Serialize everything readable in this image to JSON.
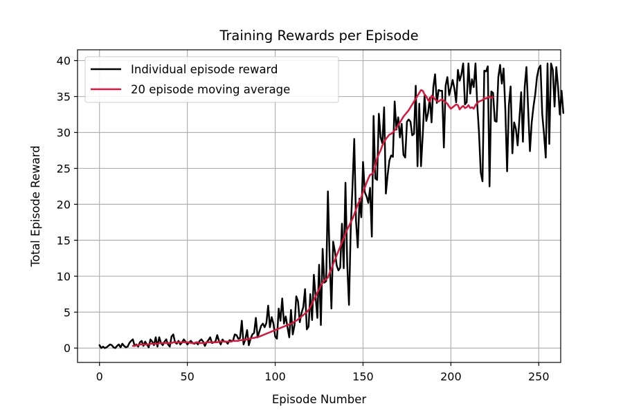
{
  "chart_data": {
    "type": "line",
    "title": "Training Rewards per Episode",
    "xlabel": "Episode Number",
    "ylabel": "Total Episode Reward",
    "xlim": [
      -12.5,
      262.5
    ],
    "ylim": [
      -2,
      41.5
    ],
    "xticks": [
      0,
      50,
      100,
      150,
      200,
      250
    ],
    "yticks": [
      0,
      5,
      10,
      15,
      20,
      25,
      30,
      35,
      40
    ],
    "grid": true,
    "legend_position": "upper-left",
    "series": [
      {
        "name": "Individual episode reward",
        "color": "#000000",
        "x_start": 0,
        "y": [
          0.4,
          0,
          0.2,
          0,
          0.1,
          0.3,
          0.5,
          0.4,
          0.1,
          0,
          0.3,
          0.5,
          0.1,
          0.6,
          0.3,
          0.1,
          0.2,
          0.7,
          1.0,
          1.2,
          0.3,
          0.5,
          0.2,
          0.8,
          1.0,
          0.3,
          0.9,
          0.5,
          0.1,
          1.2,
          0.9,
          0.4,
          1.5,
          0.2,
          1.5,
          0.7,
          0.4,
          0.9,
          1.2,
          0.5,
          0.2,
          1.6,
          1.9,
          0.8,
          0.6,
          1.0,
          0.5,
          0.8,
          1.2,
          0.9,
          0.5,
          0.8,
          1.0,
          0.7,
          0.6,
          0.8,
          0.5,
          1.0,
          1.2,
          0.9,
          0.3,
          0.8,
          1.1,
          1.5,
          0.7,
          0.8,
          0.9,
          1.8,
          1.0,
          0.5,
          1.2,
          0.9,
          0.9,
          0.6,
          1.1,
          1.0,
          1.0,
          1.9,
          1.8,
          1.3,
          1.4,
          3.8,
          0.5,
          1.2,
          2.5,
          0.4,
          1.3,
          1.9,
          2.1,
          4.2,
          1.5,
          2.3,
          3.1,
          3.4,
          2.9,
          3.5,
          5.9,
          2.9,
          4.3,
          3.4,
          1.6,
          1.3,
          5.5,
          3.8,
          6.9,
          3.4,
          4.4,
          2.9,
          1.5,
          5.3,
          1.9,
          3.2,
          7.2,
          6.5,
          3.6,
          4.9,
          5.7,
          8.2,
          2.6,
          3.0,
          7.5,
          3.9,
          10.2,
          7.2,
          4.2,
          11.6,
          3.2,
          13.8,
          9.1,
          9.3,
          21.8,
          12.4,
          5.5,
          14.8,
          13.4,
          11.5,
          10.8,
          11.2,
          17.3,
          11.1,
          23.0,
          11.7,
          6.0,
          16.6,
          22.5,
          29.1,
          17.7,
          14.0,
          20.8,
          18.2,
          25.9,
          21.7,
          21.1,
          20.2,
          22.3,
          15.5,
          32.3,
          23.6,
          23.4,
          32.6,
          29.3,
          28.5,
          33.5,
          21.5,
          24.1,
          26.1,
          26.8,
          26.6,
          34.3,
          30.4,
          32.1,
          29.3,
          31.2,
          26.9,
          26.5,
          31.5,
          31.8,
          31.5,
          29.6,
          29.8,
          36.5,
          25.3,
          34.0,
          25.3,
          29.7,
          35.1,
          31.6,
          32.7,
          34.8,
          31.4,
          36.3,
          38.1,
          34.1,
          35.9,
          35.8,
          35.8,
          27.9,
          36.5,
          37.7,
          35.2,
          36.2,
          37.3,
          36.1,
          34.2,
          38.7,
          37.2,
          38.1,
          39.6,
          33.9,
          34.2,
          39.6,
          35.4,
          37.4,
          36.3,
          39.6,
          33.9,
          30.0,
          24.4,
          23.2,
          38.6,
          38.5,
          39.2,
          22.5,
          35.7,
          35.5,
          31.6,
          31.5,
          37.7,
          39.4,
          36.8,
          38.9,
          33.1,
          24.6,
          33.8,
          36.4,
          27.1,
          31.4,
          30.5,
          28.2,
          31.9,
          35.6,
          28.7,
          36.3,
          39.1,
          33.1,
          27.4,
          31.4,
          33.6,
          35.3,
          37.7,
          38.9,
          39.3,
          32.5,
          29.8,
          26.5,
          39.6,
          28.4,
          39.6,
          38.7,
          33.6,
          39.1,
          36.3,
          32.5,
          35.8,
          32.7
        ]
      },
      {
        "name": "20 episode moving average",
        "color": "#dc143c",
        "x_start": 19,
        "y": [
          0.3,
          0.3,
          0.4,
          0.4,
          0.5,
          0.5,
          0.5,
          0.5,
          0.5,
          0.5,
          0.6,
          0.6,
          0.6,
          0.6,
          0.6,
          0.7,
          0.7,
          0.7,
          0.7,
          0.7,
          0.7,
          0.7,
          0.7,
          0.8,
          0.8,
          0.8,
          0.8,
          0.8,
          0.8,
          0.8,
          0.8,
          0.8,
          0.8,
          0.7,
          0.7,
          0.7,
          0.8,
          0.8,
          0.7,
          0.7,
          0.7,
          0.7,
          0.8,
          0.8,
          0.8,
          0.8,
          0.8,
          0.8,
          0.8,
          0.9,
          0.9,
          0.9,
          0.9,
          0.9,
          0.9,
          0.9,
          0.9,
          1.0,
          1.0,
          1.0,
          1.0,
          1.1,
          1.1,
          1.1,
          1.2,
          1.2,
          1.3,
          1.3,
          1.4,
          1.4,
          1.5,
          1.5,
          1.6,
          1.7,
          1.8,
          1.9,
          2.0,
          2.1,
          2.2,
          2.3,
          2.4,
          2.5,
          2.6,
          2.7,
          2.8,
          2.9,
          3.0,
          3.1,
          3.2,
          3.3,
          3.4,
          3.5,
          3.7,
          3.8,
          4.0,
          4.2,
          4.4,
          4.6,
          4.8,
          5.0,
          5.3,
          5.7,
          6.2,
          6.7,
          7.2,
          7.7,
          8.2,
          8.7,
          9.1,
          9.4,
          9.6,
          9.8,
          10.5,
          11.0,
          11.7,
          12.3,
          12.9,
          13.5,
          14.1,
          14.7,
          15.3,
          15.9,
          16.5,
          17.0,
          17.5,
          18.0,
          18.6,
          19.3,
          20.0,
          20.5,
          21.0,
          21.7,
          22.3,
          23.0,
          23.6,
          24.1,
          24.2,
          24.5,
          25.4,
          26.4,
          27.0,
          27.5,
          28.2,
          28.7,
          29.1,
          29.4,
          29.7,
          29.8,
          30.0,
          30.3,
          30.6,
          31.0,
          31.4,
          31.8,
          32.2,
          32.5,
          32.8,
          33.1,
          33.5,
          33.9,
          34.3,
          34.7,
          35.1,
          35.5,
          35.9,
          35.8,
          35.3,
          35.0,
          34.5,
          34.3,
          35.1,
          34.9,
          34.6,
          34.4,
          34.3,
          34.5,
          34.6,
          34.4,
          34.2,
          34.0,
          33.6,
          33.3,
          33.5,
          33.7,
          33.9,
          33.8,
          33.2,
          33.5,
          33.7,
          33.4,
          33.5,
          33.8,
          33.4,
          33.5,
          33.3,
          33.8,
          34.1,
          34.3,
          34.4,
          34.5,
          34.8,
          34.7,
          34.9,
          35.0,
          34.8,
          34.9
        ]
      }
    ]
  }
}
